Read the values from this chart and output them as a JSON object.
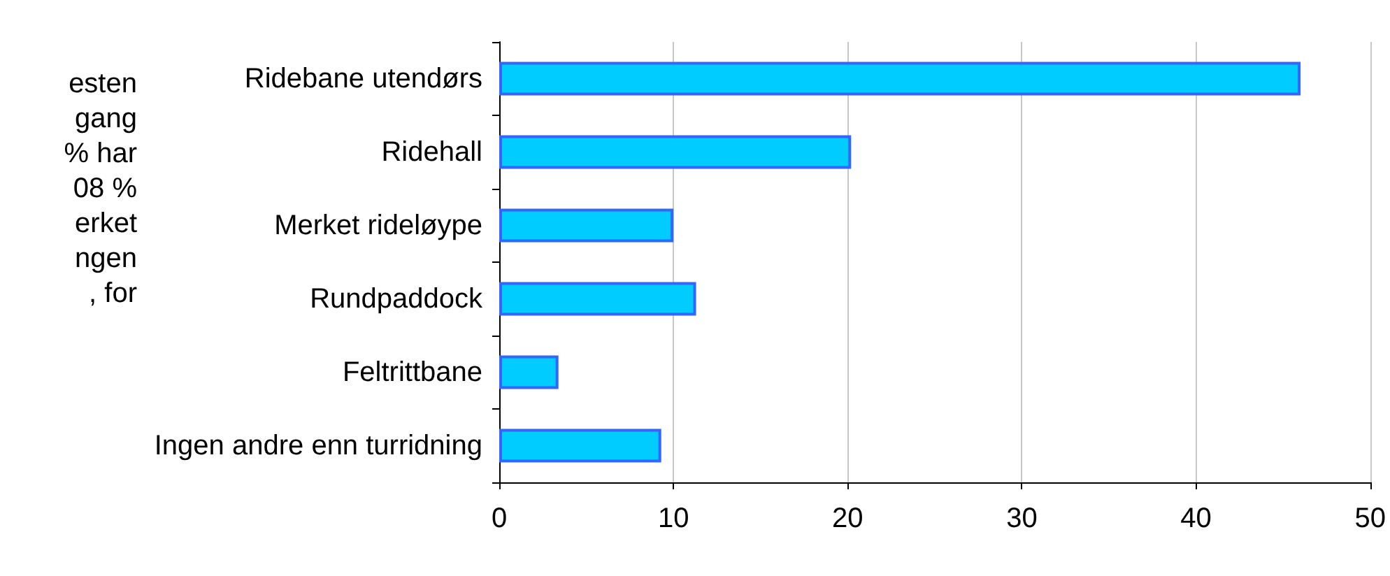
{
  "chart_data": {
    "type": "bar",
    "orientation": "horizontal",
    "categories": [
      "Ridebane utendørs",
      "Ridehall",
      "Merket rideløype",
      "Rundpaddock",
      "Feltrittbane",
      "Ingen andre enn turridning"
    ],
    "values": [
      46,
      20.2,
      10,
      11.3,
      3.4,
      9.3
    ],
    "color": "#00ccff",
    "xlim": [
      0,
      50
    ],
    "xticks": [
      0,
      10,
      20,
      30,
      40,
      50
    ],
    "grid": "x",
    "annotations": [
      "esten",
      "gang",
      "% har",
      "08 %",
      "erket",
      "ngen",
      ", for"
    ]
  }
}
